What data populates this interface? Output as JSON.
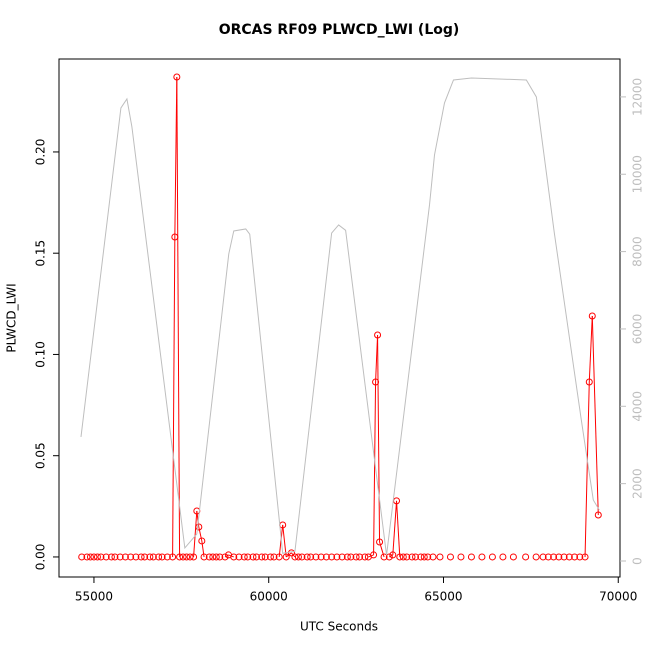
{
  "chart_data": {
    "type": "line",
    "title": "ORCAS RF09 PLWCD_LWI (Log)",
    "x_label": "UTC Seconds",
    "y_label": "PLWCD_LWI",
    "xlim": [
      54000,
      70050
    ],
    "ylim": [
      -0.0099,
      0.2459
    ],
    "y2lim": [
      -414,
      12980
    ],
    "xticks": [
      55000,
      60000,
      65000,
      70000
    ],
    "yticks": [
      {
        "value": 0,
        "label": "0.00"
      },
      {
        "value": 0.05,
        "label": "0.05"
      },
      {
        "value": 0.1,
        "label": "0.10"
      },
      {
        "value": 0.15,
        "label": "0.15"
      },
      {
        "value": 0.2,
        "label": "0.20"
      }
    ],
    "y2ticks": [
      0,
      2000,
      4000,
      6000,
      8000,
      10000,
      12000
    ],
    "series": [
      {
        "color": "#ff0000",
        "x": [
          54650,
          54800,
          54900,
          55000,
          55100,
          55200,
          55350,
          55500,
          55600,
          55750,
          55900,
          56050,
          56200,
          56350,
          56450,
          56600,
          56700,
          56850,
          56950,
          57100,
          57250,
          57314,
          57371,
          57450,
          57550,
          57650,
          57750,
          57850,
          57943,
          58000,
          58086,
          58150,
          58300,
          58400,
          58500,
          58600,
          58750,
          58850,
          59000,
          59150,
          59300,
          59400,
          59550,
          59650,
          59800,
          59900,
          60050,
          60150,
          60300,
          60400,
          60500,
          60650,
          60750,
          60850,
          60950,
          61100,
          61200,
          61350,
          61500,
          61650,
          61800,
          61950,
          62100,
          62250,
          62350,
          62500,
          62600,
          62750,
          62850,
          63000,
          63057,
          63114,
          63171,
          63300,
          63450,
          63550,
          63657,
          63750,
          63850,
          63950,
          64100,
          64200,
          64350,
          64450,
          64550,
          64700,
          64900,
          65200,
          65500,
          65800,
          66100,
          66400,
          66700,
          67000,
          67350,
          67650,
          67850,
          68000,
          68150,
          68300,
          68450,
          68600,
          68750,
          68900,
          69050,
          69171,
          69257,
          69429
        ],
        "values": [
          0,
          0,
          0,
          0,
          0,
          0,
          0,
          0,
          0,
          0,
          0,
          0,
          0,
          0,
          0,
          0,
          0,
          0,
          0,
          0,
          0,
          0.158,
          0.237,
          0,
          0,
          0,
          0,
          0,
          0.0227,
          0.0148,
          0.0079,
          0,
          0,
          0,
          0,
          0,
          0,
          0.001,
          0,
          0,
          0,
          0,
          0,
          0,
          0,
          0,
          0,
          0,
          0,
          0.0158,
          0,
          0.002,
          0,
          0,
          0,
          0,
          0,
          0,
          0,
          0,
          0,
          0,
          0,
          0,
          0,
          0,
          0,
          0,
          0,
          0.001,
          0.0864,
          0.1096,
          0.0074,
          0,
          0,
          0.001,
          0.0277,
          0,
          0,
          0,
          0,
          0,
          0,
          0,
          0,
          0,
          0,
          0,
          0,
          0,
          0,
          0,
          0,
          0,
          0,
          0,
          0,
          0,
          0,
          0,
          0,
          0,
          0,
          0,
          0,
          0.0864,
          0.119,
          0.0207
        ]
      },
      {
        "color": "#bebebe",
        "axis": "y2",
        "x": [
          54629,
          55771,
          55943,
          56086,
          57600,
          57943,
          58857,
          59000,
          59343,
          59457,
          60400,
          60750,
          61800,
          62000,
          62200,
          63371,
          64600,
          64743,
          65029,
          65286,
          65800,
          67371,
          67657,
          68171,
          68943,
          69286,
          69457
        ],
        "values": [
          3207,
          11714,
          11947,
          11223,
          336,
          700,
          7939,
          8534,
          8585,
          8450,
          200,
          250,
          8480,
          8689,
          8550,
          150,
          9206,
          10499,
          11844,
          12438,
          12490,
          12438,
          11999,
          8482,
          3646,
          1577,
          1319
        ]
      }
    ]
  }
}
